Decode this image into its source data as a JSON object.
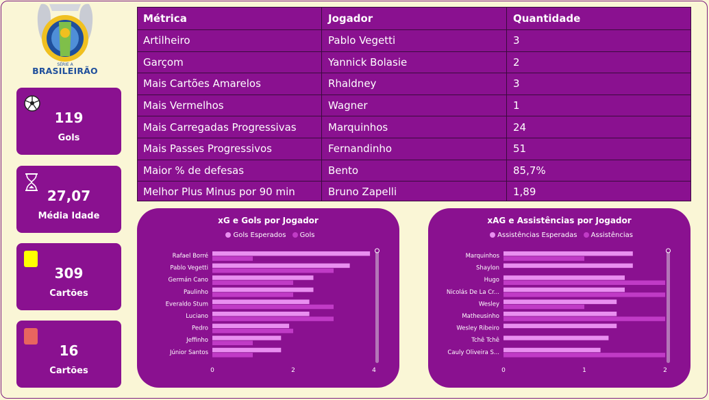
{
  "logo": {
    "text": "BRASILEIRÃO",
    "badge": "SÉRIE A"
  },
  "kpis": [
    {
      "value": "119",
      "label": "Gols",
      "icon": "soccer-ball-icon"
    },
    {
      "value": "27,07",
      "label": "Média Idade",
      "icon": "hourglass-icon"
    },
    {
      "value": "309",
      "label": "Cartões",
      "icon": "yellow-card-icon",
      "color": "#ffff00"
    },
    {
      "value": "16",
      "label": "Cartões",
      "icon": "red-card-icon",
      "color": "#e8655f"
    }
  ],
  "table": {
    "headers": [
      "Métrica",
      "Jogador",
      "Quantidade"
    ],
    "rows": [
      [
        "Artilheiro",
        "Pablo Vegetti",
        "3"
      ],
      [
        "Garçom",
        "Yannick Bolasie",
        "2"
      ],
      [
        "Mais Cartões Amarelos",
        "Rhaldney",
        "3"
      ],
      [
        "Mais Vermelhos",
        "Wagner",
        "1"
      ],
      [
        "Mais Carregadas Progressivas",
        "Marquinhos",
        "24"
      ],
      [
        "Mais Passes Progressivos",
        "Fernandinho",
        "51"
      ],
      [
        "Maior % de defesas",
        "Bento",
        "85,7%"
      ],
      [
        "Melhor Plus Minus por 90 min",
        "Bruno Zapelli",
        "1,89"
      ]
    ]
  },
  "colors": {
    "background": "#faf6d6",
    "panel": "#8a1190",
    "bar_light": "#e98ff0",
    "bar_dark": "#c03bc6"
  },
  "chart_data": [
    {
      "type": "bar",
      "orientation": "horizontal",
      "title": "xG e Gols por Jogador",
      "categories": [
        "Rafael Borré",
        "Pablo Vegetti",
        "Germán Cano",
        "Paulinho",
        "Everaldo Stum",
        "Luciano",
        "Pedro",
        "Jeffinho",
        "Júnior Santos"
      ],
      "series": [
        {
          "name": "Gols Esperados",
          "color": "#e98ff0",
          "values": [
            3.9,
            3.4,
            2.5,
            2.5,
            2.4,
            2.4,
            1.9,
            1.7,
            1.7
          ]
        },
        {
          "name": "Gols",
          "color": "#c03bc6",
          "values": [
            1,
            3,
            2,
            2,
            3,
            3,
            2,
            1,
            1
          ]
        }
      ],
      "xlim": [
        0,
        4
      ],
      "xticks": [
        "0",
        "2",
        "4"
      ],
      "legend": "top"
    },
    {
      "type": "bar",
      "orientation": "horizontal",
      "title": "xAG e Assistências por Jogador",
      "categories": [
        "Marquinhos",
        "Shaylon",
        "Hugo",
        "Nicolás De La Cr...",
        "Wesley",
        "Matheusinho",
        "Wesley Ribeiro",
        "Tchê Tchê",
        "Cauly Oliveira S..."
      ],
      "series": [
        {
          "name": "Assistências Esperadas",
          "color": "#e98ff0",
          "values": [
            1.6,
            1.6,
            1.5,
            1.5,
            1.4,
            1.4,
            1.4,
            1.3,
            1.2
          ]
        },
        {
          "name": "Assistências",
          "color": "#c03bc6",
          "values": [
            1,
            null,
            2,
            2,
            1,
            2,
            null,
            null,
            2
          ]
        }
      ],
      "xlim": [
        0,
        2
      ],
      "xticks": [
        "0",
        "1",
        "2"
      ],
      "legend": "top"
    }
  ]
}
